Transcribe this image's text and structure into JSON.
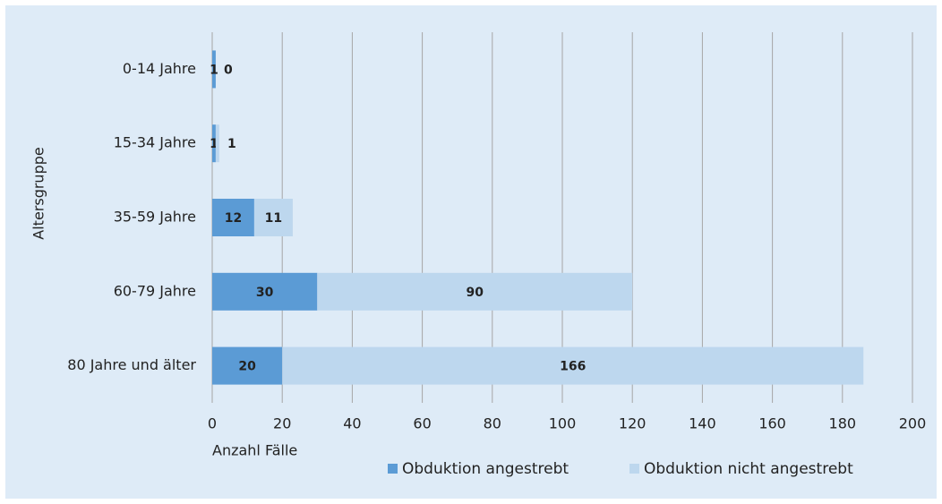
{
  "chart_data": {
    "type": "bar_stacked_horizontal",
    "categories": [
      "0-14 Jahre",
      "15-34 Jahre",
      "35-59 Jahre",
      "60-79 Jahre",
      "80 Jahre und älter"
    ],
    "series": [
      {
        "name": "Obduktion angestrebt",
        "color": "#5b9bd5",
        "values": [
          1,
          1,
          12,
          30,
          20
        ]
      },
      {
        "name": "Obduktion nicht angestrebt",
        "color": "#bdd7ee",
        "values": [
          0,
          1,
          11,
          90,
          166
        ]
      }
    ],
    "xlabel": "Anzahl Fälle",
    "ylabel": "Altersgruppe",
    "xlim": [
      0,
      200
    ],
    "xticks": [
      0,
      20,
      40,
      60,
      80,
      100,
      120,
      140,
      160,
      180,
      200
    ],
    "grid": true,
    "legend": "bottom"
  }
}
